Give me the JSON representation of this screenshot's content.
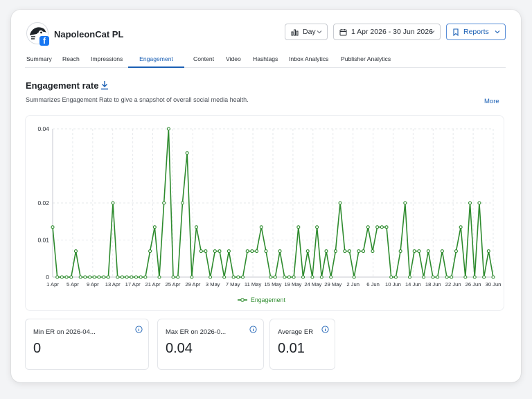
{
  "profile": {
    "name": "NapoleonCat PL",
    "network_icon": "facebook-icon"
  },
  "controls": {
    "granularity": "Day",
    "date_range": "1 Apr 2026 - 30 Jun 2026",
    "reports": "Reports"
  },
  "tabs": [
    {
      "label": "Summary",
      "active": false
    },
    {
      "label": "Reach",
      "active": false
    },
    {
      "label": "Impressions",
      "active": false
    },
    {
      "label": "Engagement",
      "active": true
    },
    {
      "label": "Content",
      "active": false
    },
    {
      "label": "Video",
      "active": false
    },
    {
      "label": "Hashtags",
      "active": false
    },
    {
      "label": "Inbox Analytics",
      "active": false
    },
    {
      "label": "Publisher Analytics",
      "active": false
    }
  ],
  "section": {
    "title": "Engagement rate",
    "subtitle": "Summarizes Engagement Rate to give a snapshot of overall social media health.",
    "more": "More"
  },
  "chart_data": {
    "type": "line",
    "x_ticks": [
      "1 Apr",
      "5 Apr",
      "9 Apr",
      "13 Apr",
      "17 Apr",
      "21 Apr",
      "25 Apr",
      "29 Apr",
      "3 May",
      "7 May",
      "11 May",
      "15 May",
      "19 May",
      "24 May",
      "29 May",
      "2 Jun",
      "6 Jun",
      "10 Jun",
      "14 Jun",
      "18 Jun",
      "22 Jun",
      "26 Jun",
      "30 Jun"
    ],
    "y_ticks": [
      "0",
      "0.01",
      "0.02",
      "0.04"
    ],
    "ylim": [
      0,
      0.04
    ],
    "grid": true,
    "legend_position": "bottom",
    "series": [
      {
        "name": "Engagement",
        "color": "#2e8b2e",
        "values": [
          0.0135,
          0,
          0,
          0,
          0,
          0.007,
          0,
          0,
          0,
          0,
          0,
          0,
          0,
          0.02,
          0,
          0,
          0,
          0,
          0,
          0,
          0,
          0.007,
          0.0135,
          0,
          0.02,
          0.04,
          0,
          0,
          0.02,
          0.0335,
          0,
          0.0135,
          0.007,
          0.007,
          0,
          0.007,
          0.007,
          0,
          0.007,
          0,
          0,
          0,
          0.007,
          0.007,
          0.007,
          0.0135,
          0.007,
          0,
          0,
          0.007,
          0,
          0,
          0,
          0.0135,
          0,
          0.007,
          0,
          0.0135,
          0,
          0.007,
          0,
          0.007,
          0.02,
          0.007,
          0.007,
          0,
          0.007,
          0.007,
          0.0135,
          0.007,
          0.0135,
          0.0135,
          0.0135,
          0,
          0,
          0.007,
          0.02,
          0,
          0.007,
          0.007,
          0,
          0.007,
          0,
          0,
          0.007,
          0,
          0,
          0.007,
          0.0135,
          0,
          0.02,
          0,
          0.02,
          0,
          0.007,
          0
        ]
      }
    ]
  },
  "stats": [
    {
      "label": "Min ER on 2026-04...",
      "value": "0"
    },
    {
      "label": "Max ER on 2026-0...",
      "value": "0.04"
    },
    {
      "label": "Average ER",
      "value": "0.01"
    }
  ],
  "colors": {
    "accent": "#1a5fb4",
    "series": "#2e8b2e"
  }
}
